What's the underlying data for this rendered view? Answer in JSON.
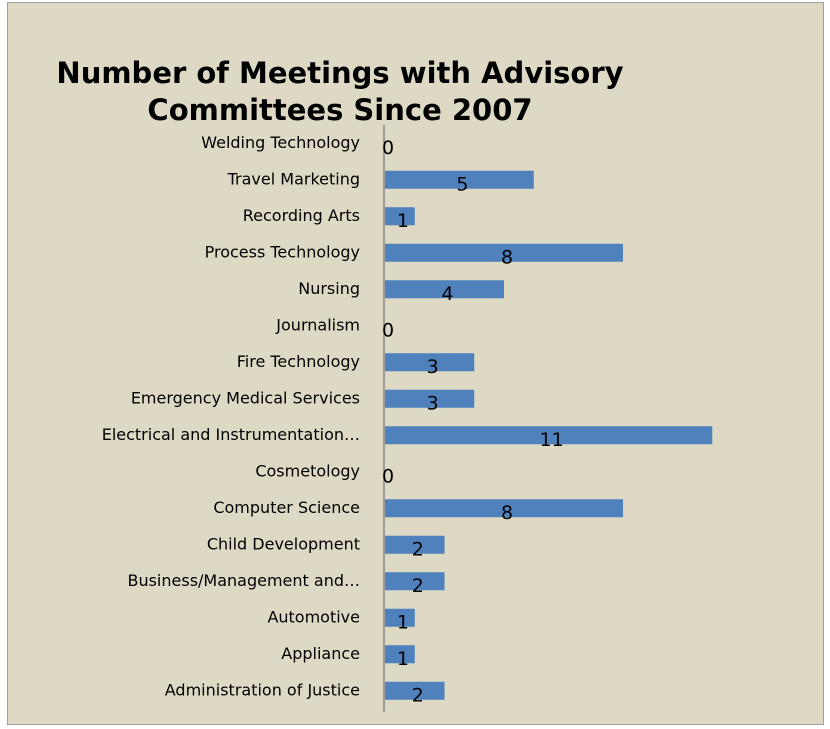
{
  "chart_data": {
    "type": "bar",
    "orientation": "horizontal",
    "title": [
      "Number of Meetings with Advisory",
      "Committees Since 2007"
    ],
    "categories": [
      "Welding Technology",
      "Travel Marketing",
      "Recording Arts",
      "Process Technology",
      "Nursing",
      "Journalism",
      "Fire Technology",
      "Emergency Medical Services",
      "Electrical and Instrumentation…",
      "Cosmetology",
      "Computer Science",
      "Child Development",
      "Business/Management and…",
      "Automotive",
      "Appliance",
      "Administration of Justice"
    ],
    "values": [
      0,
      5,
      1,
      8,
      4,
      0,
      3,
      3,
      11,
      0,
      8,
      2,
      2,
      1,
      1,
      2
    ],
    "color": "#4f81bd",
    "xlim": [
      0,
      12
    ]
  }
}
